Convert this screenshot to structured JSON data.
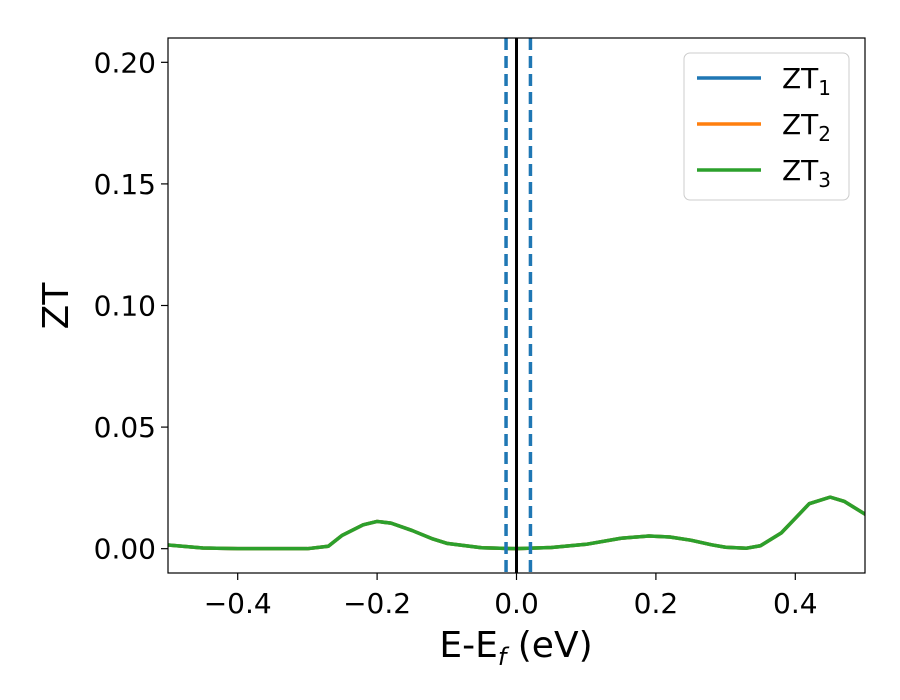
{
  "chart_data": {
    "type": "line",
    "xlabel": "E-E",
    "xlabel_sub": "f",
    "xlabel_unit": " (eV)",
    "ylabel": "ZT",
    "xlim": [
      -0.5,
      0.5
    ],
    "ylim": [
      -0.01,
      0.21
    ],
    "x_ticks": [
      -0.4,
      -0.2,
      0.0,
      0.2,
      0.4
    ],
    "x_tick_labels": [
      "−0.4",
      "−0.2",
      "0.0",
      "0.2",
      "0.4"
    ],
    "y_ticks": [
      0.0,
      0.05,
      0.1,
      0.15,
      0.2
    ],
    "y_tick_labels": [
      "0.00",
      "0.05",
      "0.10",
      "0.15",
      "0.20"
    ],
    "grid": false,
    "legend_position": "top-right",
    "vlines": [
      {
        "x": 0.0,
        "style": "solid",
        "color": "#000000"
      },
      {
        "x": -0.015,
        "style": "dashed",
        "color": "#1f77b4"
      },
      {
        "x": 0.02,
        "style": "dashed",
        "color": "#1f77b4"
      }
    ],
    "x": [
      -0.5,
      -0.45,
      -0.4,
      -0.35,
      -0.3,
      -0.27,
      -0.25,
      -0.22,
      -0.2,
      -0.18,
      -0.15,
      -0.12,
      -0.1,
      -0.05,
      0.0,
      0.05,
      0.1,
      0.15,
      0.19,
      0.22,
      0.25,
      0.28,
      0.3,
      0.33,
      0.35,
      0.38,
      0.4,
      0.42,
      0.45,
      0.47,
      0.5
    ],
    "series": [
      {
        "name": "ZT",
        "sub": "1",
        "color": "#1f77b4",
        "values": [
          0.0015,
          0.0003,
          0.0,
          0.0,
          0.0,
          0.001,
          0.0055,
          0.0098,
          0.0112,
          0.0105,
          0.0075,
          0.004,
          0.0022,
          0.0004,
          0.0,
          0.0005,
          0.0018,
          0.0043,
          0.0052,
          0.0048,
          0.0035,
          0.0016,
          0.0006,
          0.0002,
          0.0012,
          0.0065,
          0.0125,
          0.0185,
          0.0212,
          0.0195,
          0.0142
        ]
      },
      {
        "name": "ZT",
        "sub": "2",
        "color": "#ff7f0e",
        "values": [
          0.0015,
          0.0003,
          0.0,
          0.0,
          0.0,
          0.001,
          0.0055,
          0.0098,
          0.0112,
          0.0105,
          0.0075,
          0.004,
          0.0022,
          0.0004,
          0.0,
          0.0005,
          0.0018,
          0.0043,
          0.0052,
          0.0048,
          0.0035,
          0.0016,
          0.0006,
          0.0002,
          0.0012,
          0.0065,
          0.0125,
          0.0185,
          0.0212,
          0.0195,
          0.0142
        ]
      },
      {
        "name": "ZT",
        "sub": "3",
        "color": "#2ca02c",
        "values": [
          0.0015,
          0.0003,
          0.0,
          0.0,
          0.0,
          0.001,
          0.0055,
          0.0098,
          0.0112,
          0.0105,
          0.0075,
          0.004,
          0.0022,
          0.0004,
          0.0,
          0.0005,
          0.0018,
          0.0043,
          0.0052,
          0.0048,
          0.0035,
          0.0016,
          0.0006,
          0.0002,
          0.0012,
          0.0065,
          0.0125,
          0.0185,
          0.0212,
          0.0195,
          0.0142
        ]
      }
    ]
  }
}
